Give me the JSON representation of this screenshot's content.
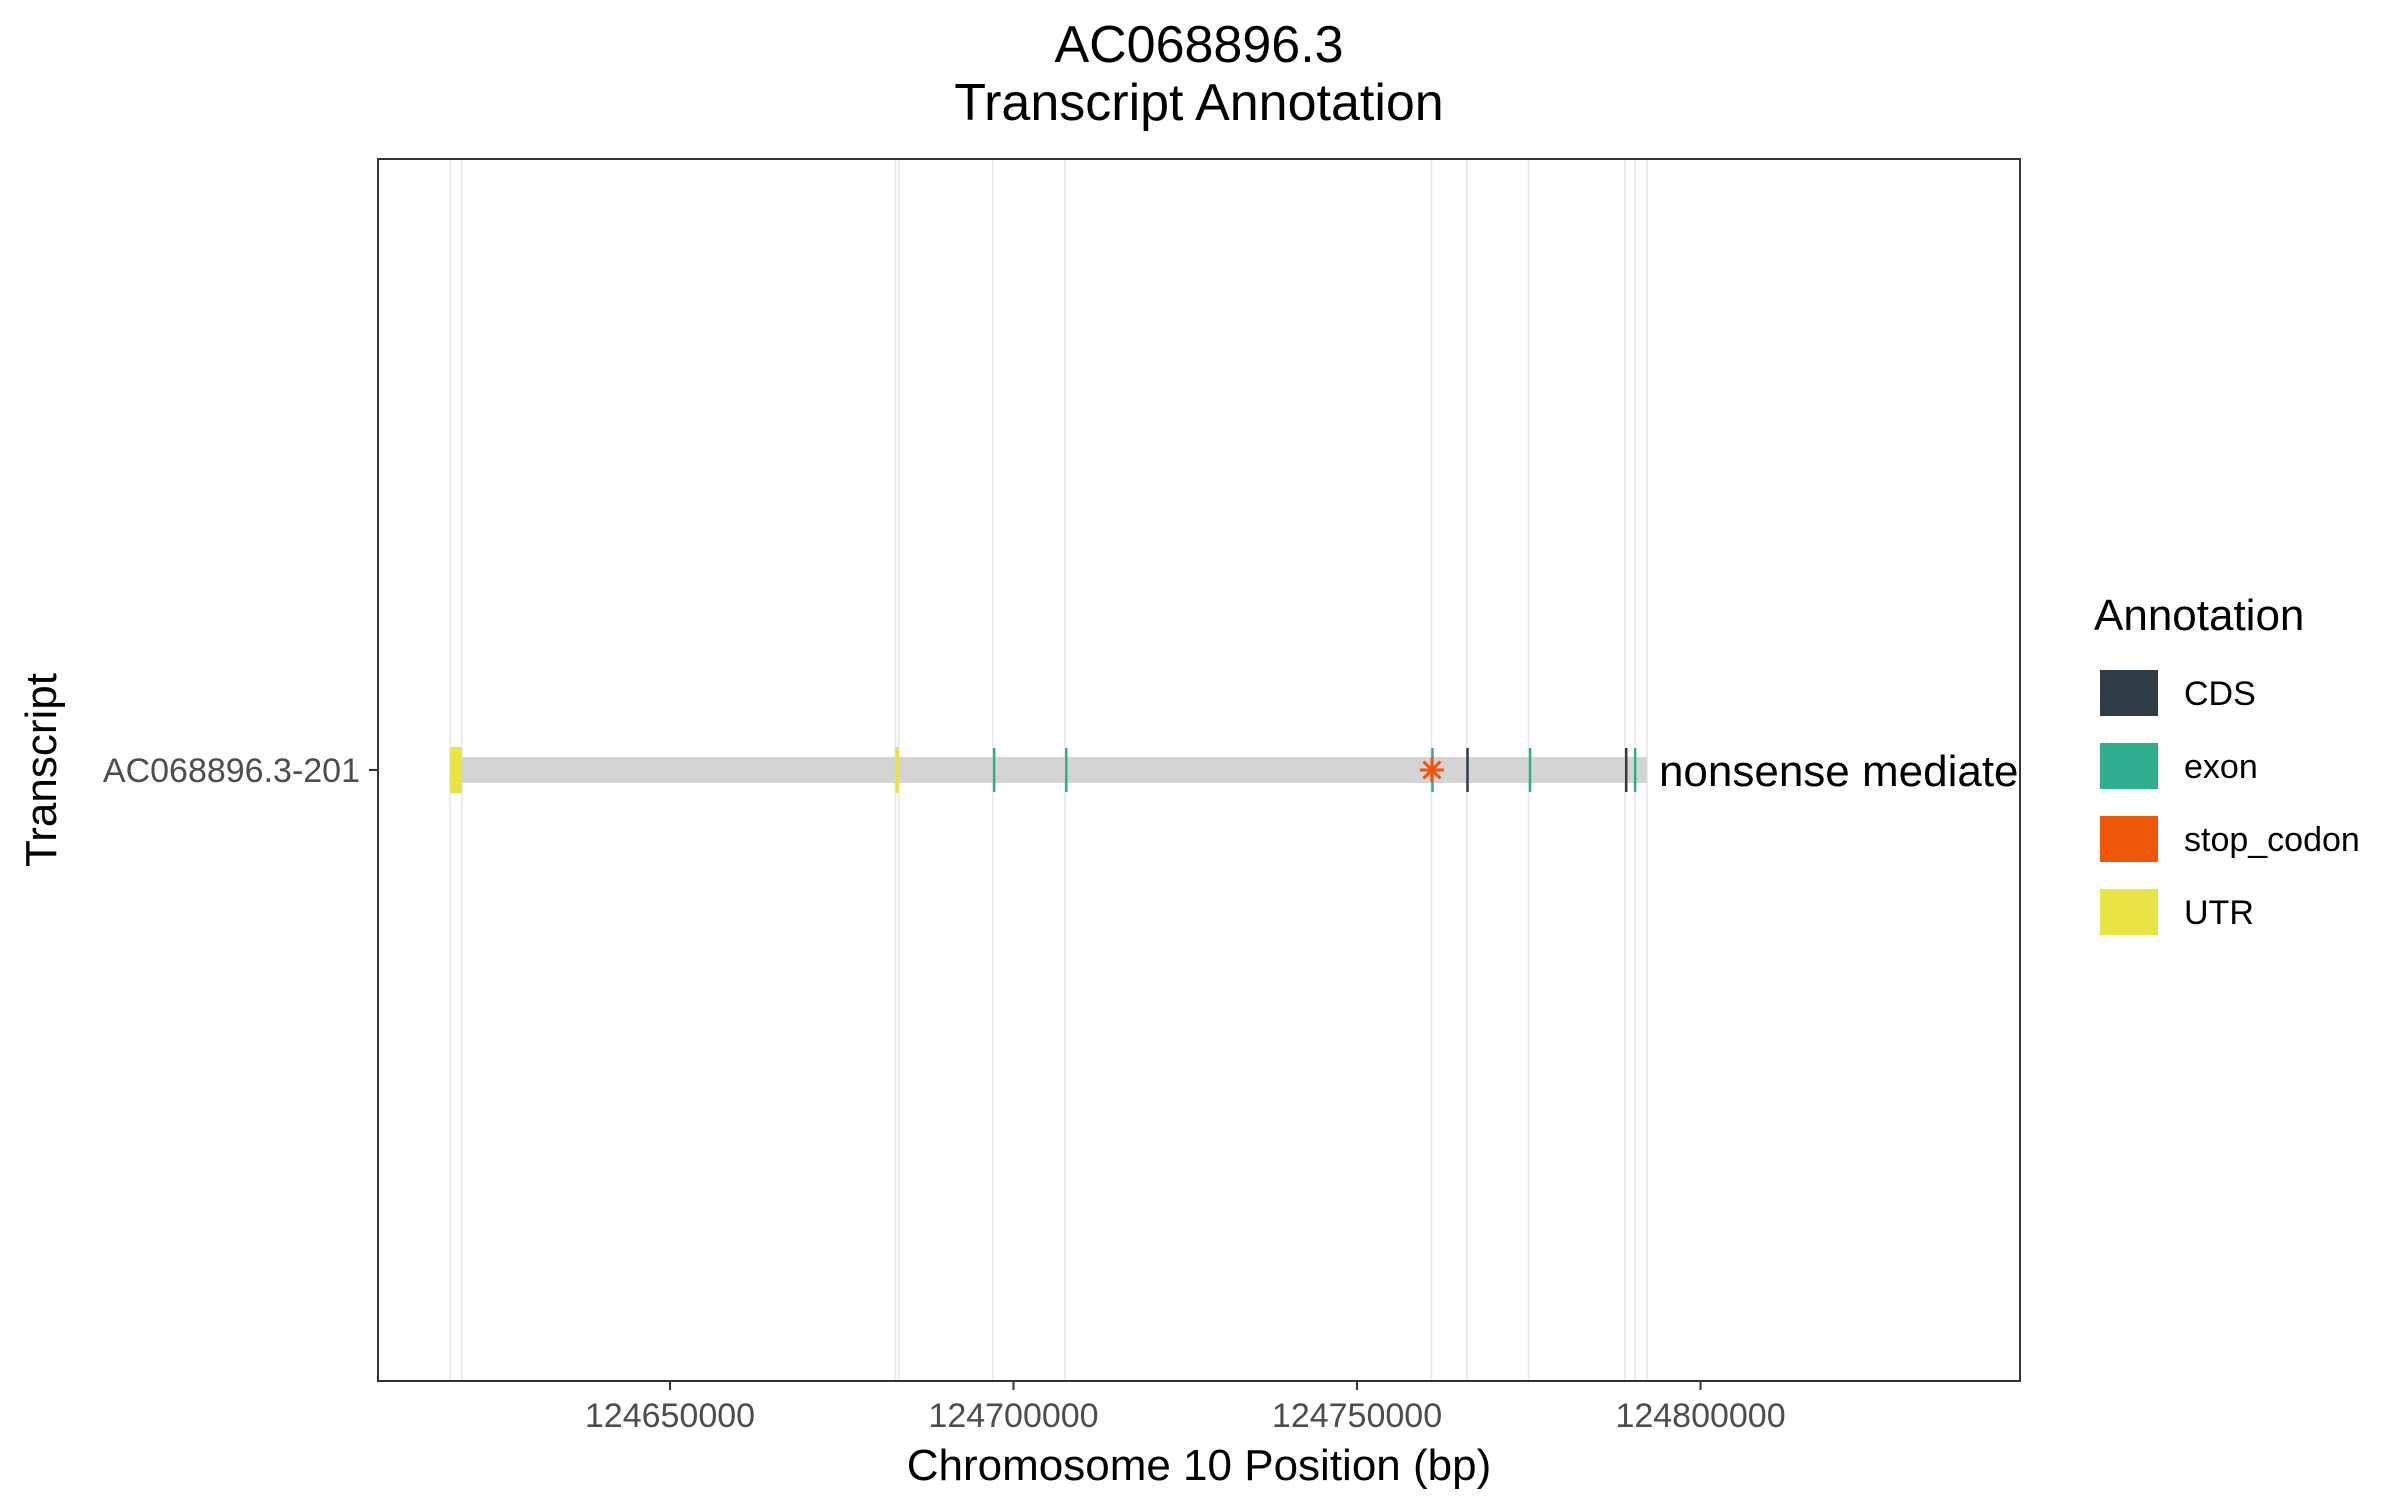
{
  "chart_data": {
    "type": "gene-track",
    "title_line1": "AC068896.3",
    "title_line2": "Transcript Annotation",
    "xlabel": "Chromosome 10 Position (bp)",
    "ylabel": "Transcript",
    "xlim": [
      124607500,
      124846500
    ],
    "x_ticks": [
      124650000,
      124700000,
      124750000,
      124800000
    ],
    "x_tick_labels": [
      "124650000",
      "124700000",
      "124750000",
      "124800000"
    ],
    "vertical_gridlines": [
      124618000,
      124619700,
      124682800,
      124683300,
      124697000,
      124707500,
      124760800,
      124766000,
      124775000,
      124789000,
      124790500,
      124792200
    ],
    "transcripts": [
      {
        "name": "AC068896.3-201",
        "start": 124618000,
        "end": 124792200,
        "biotype_label": "nonsense mediated decay",
        "features": [
          {
            "type": "UTR",
            "start": 124618000,
            "end": 124619700
          },
          {
            "type": "UTR",
            "start": 124682800,
            "end": 124683300
          },
          {
            "type": "exon",
            "start": 124697000,
            "end": 124697150
          },
          {
            "type": "exon",
            "start": 124707500,
            "end": 124707700
          },
          {
            "type": "exon",
            "start": 124760800,
            "end": 124761000
          },
          {
            "type": "CDS",
            "start": 124765900,
            "end": 124766100
          },
          {
            "type": "exon",
            "start": 124775000,
            "end": 124775150
          },
          {
            "type": "CDS",
            "start": 124789000,
            "end": 124789200
          },
          {
            "type": "exon",
            "start": 124790300,
            "end": 124790500
          }
        ],
        "stop_codons": [
          124760900
        ]
      }
    ],
    "legend": {
      "title": "Annotation",
      "position": "right",
      "items": [
        {
          "label": "CDS",
          "color": "#2f3b45"
        },
        {
          "label": "exon",
          "color": "#2fad8f"
        },
        {
          "label": "stop_codon",
          "color": "#ef5609"
        },
        {
          "label": "UTR",
          "color": "#eae346"
        }
      ]
    },
    "intron_color": "#d4d4d4"
  }
}
